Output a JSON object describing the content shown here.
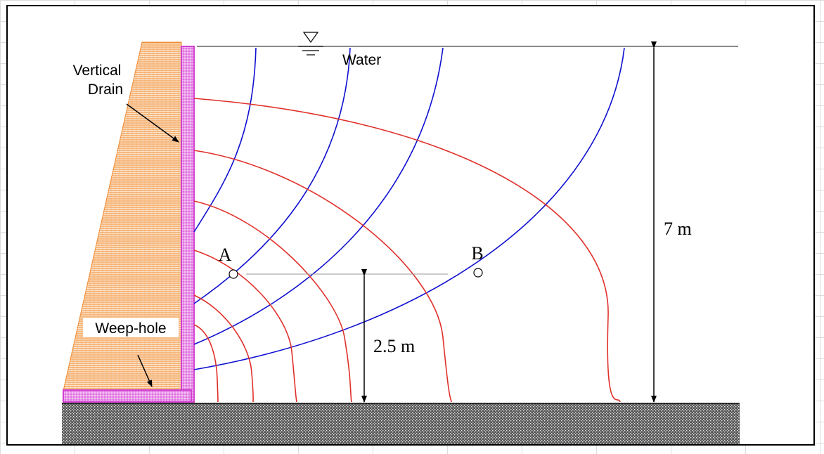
{
  "labels": {
    "vertical_drain": [
      "Vertical",
      "Drain"
    ],
    "water": "Water",
    "weep_hole": "Weep-hole",
    "point_a": "A",
    "point_b": "B",
    "height_total": "7 m",
    "height_points": "2.5 m"
  }
}
